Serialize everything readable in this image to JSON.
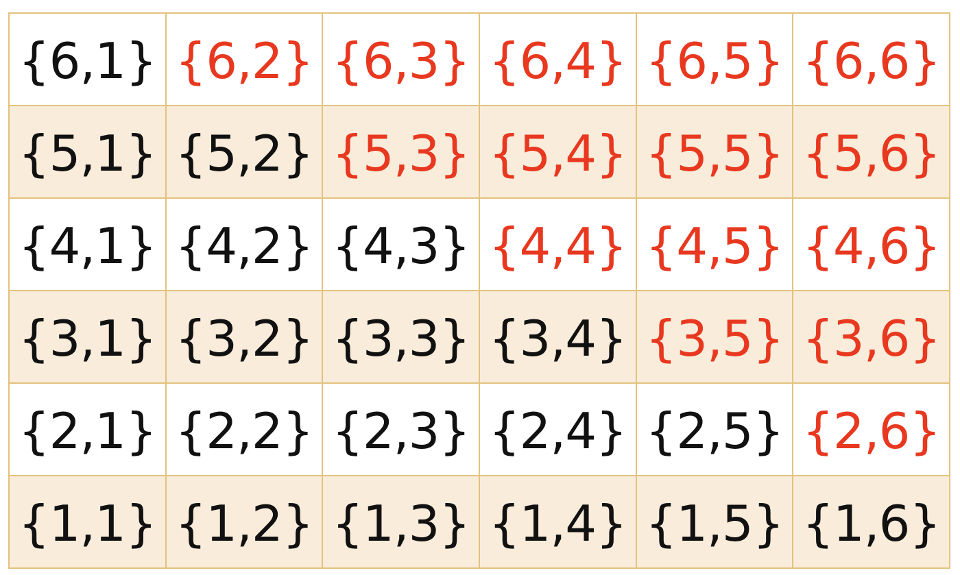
{
  "colors": {
    "highlight": "#e8381f",
    "normal": "#111111",
    "border": "#e3c27e",
    "row_shade": "#f9ecda"
  },
  "rows": [
    {
      "cells": [
        {
          "text": "{6,1}",
          "red": false
        },
        {
          "text": "{6,2}",
          "red": true
        },
        {
          "text": "{6,3}",
          "red": true
        },
        {
          "text": "{6,4}",
          "red": true
        },
        {
          "text": "{6,5}",
          "red": true
        },
        {
          "text": "{6,6}",
          "red": true
        }
      ]
    },
    {
      "cells": [
        {
          "text": "{5,1}",
          "red": false
        },
        {
          "text": "{5,2}",
          "red": false
        },
        {
          "text": "{5,3}",
          "red": true
        },
        {
          "text": "{5,4}",
          "red": true
        },
        {
          "text": "{5,5}",
          "red": true
        },
        {
          "text": "{5,6}",
          "red": true
        }
      ]
    },
    {
      "cells": [
        {
          "text": "{4,1}",
          "red": false
        },
        {
          "text": "{4,2}",
          "red": false
        },
        {
          "text": "{4,3}",
          "red": false
        },
        {
          "text": "{4,4}",
          "red": true
        },
        {
          "text": "{4,5}",
          "red": true
        },
        {
          "text": "{4,6}",
          "red": true
        }
      ]
    },
    {
      "cells": [
        {
          "text": "{3,1}",
          "red": false
        },
        {
          "text": "{3,2}",
          "red": false
        },
        {
          "text": "{3,3}",
          "red": false
        },
        {
          "text": "{3,4}",
          "red": false
        },
        {
          "text": "{3,5}",
          "red": true
        },
        {
          "text": "{3,6}",
          "red": true
        }
      ]
    },
    {
      "cells": [
        {
          "text": "{2,1}",
          "red": false
        },
        {
          "text": "{2,2}",
          "red": false
        },
        {
          "text": "{2,3}",
          "red": false
        },
        {
          "text": "{2,4}",
          "red": false
        },
        {
          "text": "{2,5}",
          "red": false
        },
        {
          "text": "{2,6}",
          "red": true
        }
      ]
    },
    {
      "cells": [
        {
          "text": "{1,1}",
          "red": false
        },
        {
          "text": "{1,2}",
          "red": false
        },
        {
          "text": "{1,3}",
          "red": false
        },
        {
          "text": "{1,4}",
          "red": false
        },
        {
          "text": "{1,5}",
          "red": false
        },
        {
          "text": "{1,6}",
          "red": false
        }
      ]
    }
  ]
}
